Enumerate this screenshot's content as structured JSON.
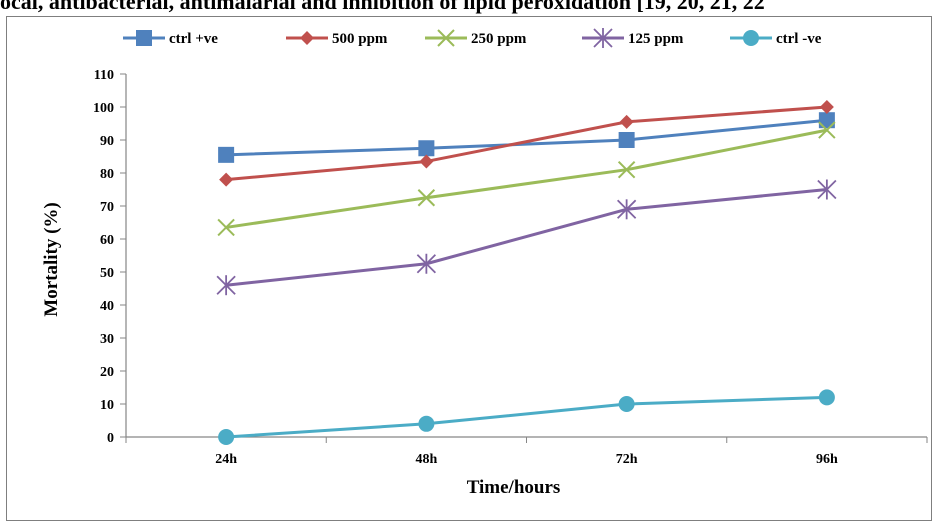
{
  "header_text": "ocal, antibacterial, antimalarial and inhibition of lipid peroxidation [19, 20, 21, 22",
  "chart_data": {
    "type": "line",
    "title": "",
    "xlabel": "Time/hours",
    "ylabel": "Mortality (%)",
    "categories": [
      "24h",
      "48h",
      "72h",
      "96h"
    ],
    "ylim": [
      0,
      110
    ],
    "yticks": [
      0,
      10,
      20,
      30,
      40,
      50,
      60,
      70,
      80,
      90,
      100,
      110
    ],
    "grid": false,
    "legend_position": "top",
    "series": [
      {
        "name": "ctrl +ve",
        "values": [
          85.5,
          87.5,
          90,
          96
        ],
        "color": "#4f81bd",
        "marker": "square"
      },
      {
        "name": "500 ppm",
        "values": [
          78,
          83.5,
          95.5,
          100
        ],
        "color": "#c0504d",
        "marker": "diamond"
      },
      {
        "name": "250 ppm",
        "values": [
          63.5,
          72.5,
          81,
          93
        ],
        "color": "#9bbb59",
        "marker": "x"
      },
      {
        "name": "125 ppm",
        "values": [
          46,
          52.5,
          69,
          75
        ],
        "color": "#8064a2",
        "marker": "star"
      },
      {
        "name": "ctrl -ve",
        "values": [
          0,
          4,
          10,
          12
        ],
        "color": "#4bacc6",
        "marker": "circle"
      }
    ]
  }
}
